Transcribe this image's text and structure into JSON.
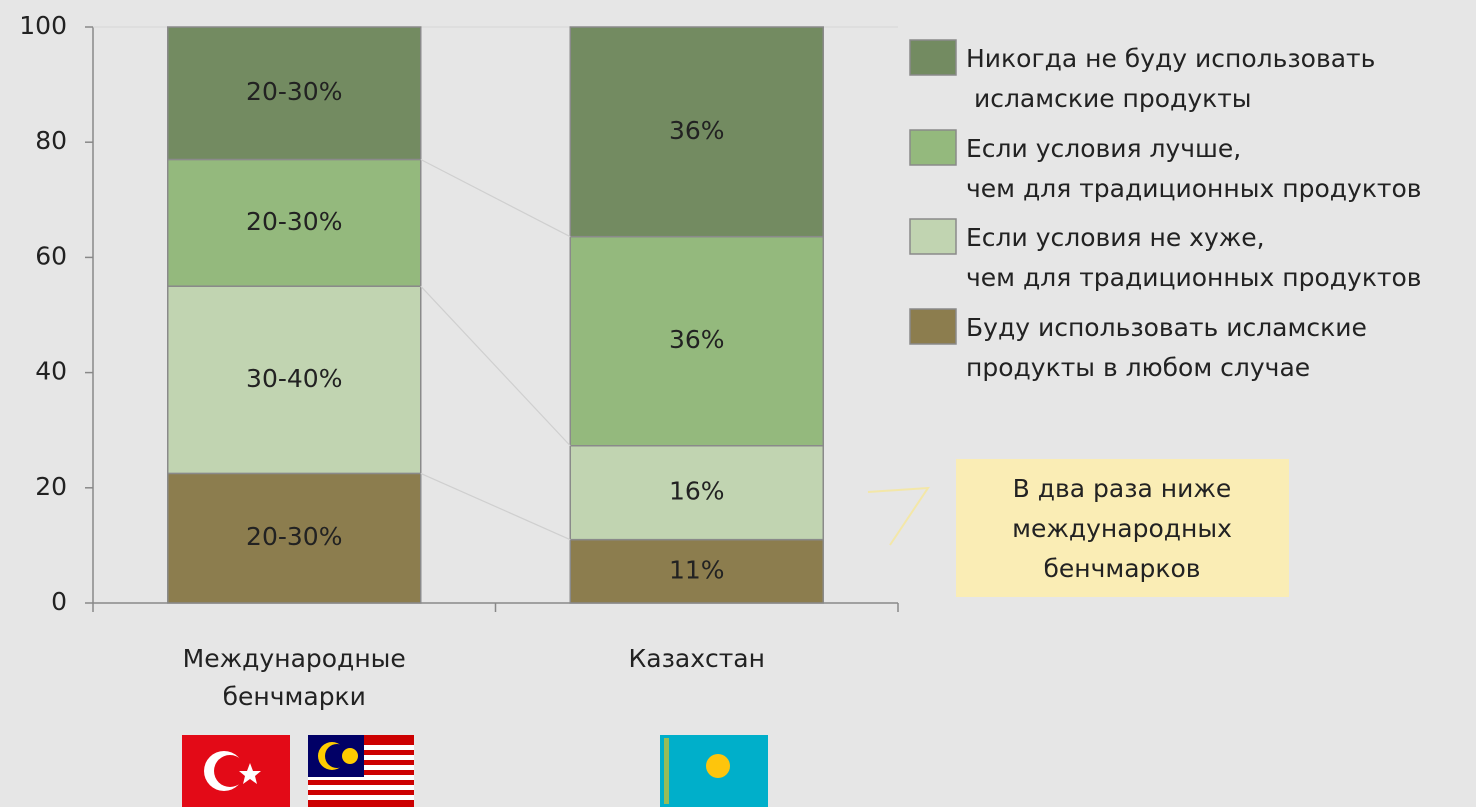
{
  "chart_data": {
    "type": "stacked_bar",
    "categories": [
      "Международные\nбенчмарки",
      "Казахстан"
    ],
    "series": [
      {
        "name": "Буду использовать исламские\nпродукты в любом случае",
        "color": "#8c7d4e",
        "values": [
          22.5,
          11
        ],
        "value_labels": [
          "20-30%",
          "11%"
        ]
      },
      {
        "name": "Если условия не хуже,\nчем для традиционных продуктов",
        "color": "#c1d4b1",
        "values": [
          32.5,
          16.3
        ],
        "value_labels": [
          "30-40%",
          "16%"
        ]
      },
      {
        "name": "Если условия лучше,\nчем для традиционных продуктов",
        "color": "#94b97d",
        "values": [
          22,
          36.3
        ],
        "value_labels": [
          "20-30%",
          "36%"
        ]
      },
      {
        "name": "Никогда не буду использовать\n исламские продукты",
        "color": "#738b61",
        "values": [
          23,
          36.4
        ],
        "value_labels": [
          "20-30%",
          "36%"
        ]
      }
    ],
    "ylim": [
      0,
      100
    ],
    "yticks": [
      0,
      20,
      40,
      60,
      80,
      100
    ],
    "annotation": "В два раза ниже\nмеждународных\nбенчмарков"
  }
}
